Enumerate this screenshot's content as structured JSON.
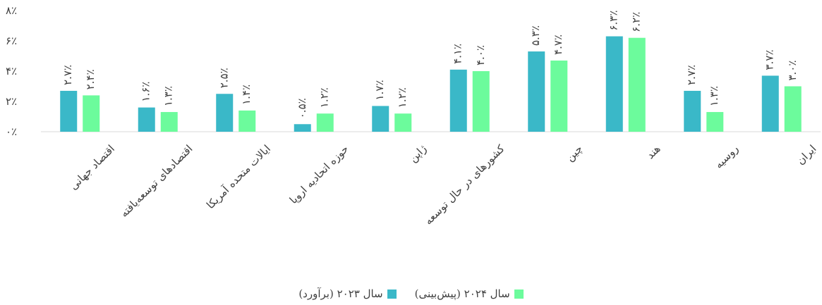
{
  "chart_data": {
    "type": "bar",
    "categories": [
      "اقتصاد جهانی",
      "اقتصادهای توسعه‌یافته",
      "ایالات متحده آمریکا",
      "حوزه اتحادیه اروپا",
      "ژاپن",
      "کشورهای در حال توسعه",
      "چین",
      "هند",
      "روسیه",
      "ایران"
    ],
    "series": [
      {
        "name": "سال ۲۰۲۳ (برآورد)",
        "color": "#3ab8c8",
        "values": [
          2.7,
          1.6,
          2.5,
          0.5,
          1.7,
          4.1,
          5.3,
          6.3,
          2.7,
          3.7
        ],
        "labels": [
          "۲.۷٪",
          "۱.۶٪",
          "۲.۵٪",
          "۰.۵٪",
          "۱.۷٪",
          "۴.۱٪",
          "۵.۳٪",
          "۶.۳٪",
          "۲.۷٪",
          "۳.۷٪"
        ]
      },
      {
        "name": "سال ۲۰۲۴ (پیش‌بینی)",
        "color": "#6cfb9c",
        "values": [
          2.4,
          1.3,
          1.4,
          1.2,
          1.2,
          4.0,
          4.7,
          6.2,
          1.3,
          3.0
        ],
        "labels": [
          "۲.۴٪",
          "۱.۳٪",
          "۱.۴٪",
          "۱.۲٪",
          "۱.۲٪",
          "۴.۰٪",
          "۴.۷٪",
          "۶.۲٪",
          "۱.۳٪",
          "۳.۰٪"
        ]
      }
    ],
    "yticks": [
      0,
      2,
      4,
      6,
      8
    ],
    "ytick_labels": [
      "۰٪",
      "۲٪",
      "۴٪",
      "۶٪",
      "۸٪"
    ],
    "ylim": [
      0,
      8
    ],
    "grid": false,
    "legend_position": "bottom",
    "title": "",
    "xlabel": "",
    "ylabel": ""
  }
}
